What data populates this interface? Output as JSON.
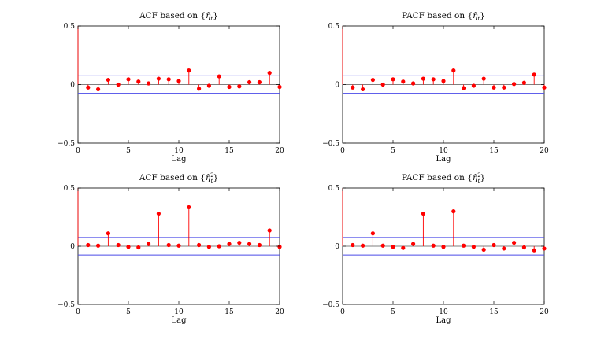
{
  "figure": {
    "x_axis_label": "Lag"
  },
  "chart_data": [
    {
      "type": "stem",
      "title": "ACF based on {η̃t}",
      "title_main": "ACF based on {",
      "title_symbol": "η̃",
      "title_sub": "t",
      "title_sup": "",
      "title_close": "}",
      "xlabel": "Lag",
      "ylabel": "",
      "xlim": [
        0,
        20
      ],
      "ylim": [
        -0.5,
        0.5
      ],
      "xticks": [
        0,
        5,
        10,
        15,
        20
      ],
      "yticks": [
        -0.5,
        0,
        0.5
      ],
      "ytick_labels": [
        "−0.5",
        "0",
        "0.5"
      ],
      "confidence_bounds": [
        0.075,
        -0.075
      ],
      "lag0_value": 1,
      "lags": [
        1,
        2,
        3,
        4,
        5,
        6,
        7,
        8,
        9,
        10,
        11,
        12,
        13,
        14,
        15,
        16,
        17,
        18,
        19,
        20
      ],
      "values": [
        -0.025,
        -0.04,
        0.04,
        0.0,
        0.045,
        0.025,
        0.01,
        0.05,
        0.045,
        0.03,
        0.12,
        -0.035,
        -0.01,
        0.07,
        -0.02,
        -0.015,
        0.02,
        0.02,
        0.1,
        -0.02
      ]
    },
    {
      "type": "stem",
      "title": "PACF based on {η̃t}",
      "title_main": "PACF based on {",
      "title_symbol": "η̃",
      "title_sub": "t",
      "title_sup": "",
      "title_close": "}",
      "xlabel": "Lag",
      "ylabel": "",
      "xlim": [
        0,
        20
      ],
      "ylim": [
        -0.5,
        0.5
      ],
      "xticks": [
        0,
        5,
        10,
        15,
        20
      ],
      "yticks": [
        -0.5,
        0,
        0.5
      ],
      "ytick_labels": [
        "−0.5",
        "0",
        "0.5"
      ],
      "confidence_bounds": [
        0.075,
        -0.075
      ],
      "lag0_value": 1,
      "lags": [
        1,
        2,
        3,
        4,
        5,
        6,
        7,
        8,
        9,
        10,
        11,
        12,
        13,
        14,
        15,
        16,
        17,
        18,
        19,
        20
      ],
      "values": [
        -0.025,
        -0.04,
        0.04,
        0.0,
        0.045,
        0.025,
        0.01,
        0.05,
        0.045,
        0.03,
        0.12,
        -0.03,
        -0.01,
        0.05,
        -0.025,
        -0.025,
        0.005,
        0.015,
        0.085,
        -0.025
      ]
    },
    {
      "type": "stem",
      "title": "ACF based on {η̃t²}",
      "title_main": "ACF based on {",
      "title_symbol": "η̃",
      "title_sub": "t",
      "title_sup": "2",
      "title_close": "}",
      "xlabel": "Lag",
      "ylabel": "",
      "xlim": [
        0,
        20
      ],
      "ylim": [
        -0.5,
        0.5
      ],
      "xticks": [
        0,
        5,
        10,
        15,
        20
      ],
      "yticks": [
        -0.5,
        0,
        0.5
      ],
      "ytick_labels": [
        "−0.5",
        "0",
        "0.5"
      ],
      "confidence_bounds": [
        0.075,
        -0.075
      ],
      "lag0_value": 1,
      "lags": [
        1,
        2,
        3,
        4,
        5,
        6,
        7,
        8,
        9,
        10,
        11,
        12,
        13,
        14,
        15,
        16,
        17,
        18,
        19,
        20
      ],
      "values": [
        0.01,
        0.005,
        0.11,
        0.01,
        -0.005,
        -0.01,
        0.02,
        0.28,
        0.01,
        0.005,
        0.335,
        0.01,
        -0.005,
        0.0,
        0.02,
        0.03,
        0.02,
        0.01,
        0.135,
        -0.005
      ]
    },
    {
      "type": "stem",
      "title": "PACF based on {η̃t²}",
      "title_main": "PACF based on {",
      "title_symbol": "η̃",
      "title_sub": "t",
      "title_sup": "2",
      "title_close": "}",
      "xlabel": "Lag",
      "ylabel": "",
      "xlim": [
        0,
        20
      ],
      "ylim": [
        -0.5,
        0.5
      ],
      "xticks": [
        0,
        5,
        10,
        15,
        20
      ],
      "yticks": [
        -0.5,
        0,
        0.5
      ],
      "ytick_labels": [
        "−0.5",
        "0",
        "0.5"
      ],
      "confidence_bounds": [
        0.075,
        -0.075
      ],
      "lag0_value": 1,
      "lags": [
        1,
        2,
        3,
        4,
        5,
        6,
        7,
        8,
        9,
        10,
        11,
        12,
        13,
        14,
        15,
        16,
        17,
        18,
        19,
        20
      ],
      "values": [
        0.01,
        0.005,
        0.11,
        0.005,
        -0.005,
        -0.015,
        0.02,
        0.28,
        0.005,
        -0.005,
        0.3,
        0.005,
        -0.005,
        -0.03,
        0.01,
        -0.02,
        0.03,
        -0.01,
        -0.035,
        -0.02
      ]
    }
  ],
  "colors": {
    "stem": "#ff0000",
    "bounds": "#4a4ae8",
    "axis": "#000000"
  }
}
